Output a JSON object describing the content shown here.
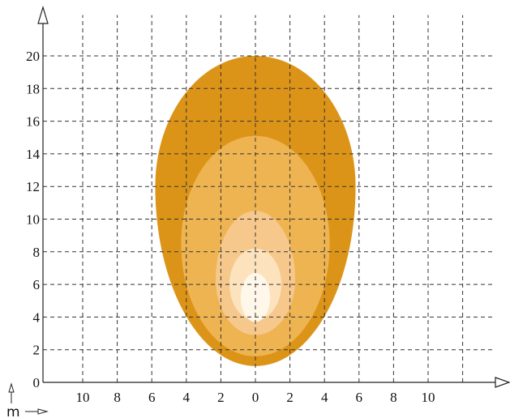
{
  "chart_data": {
    "type": "area",
    "title": "",
    "xlabel": "",
    "ylabel": "",
    "unit_label": "m",
    "x_tick_labels": [
      "10",
      "8",
      "6",
      "4",
      "2",
      "0",
      "2",
      "4",
      "6",
      "8",
      "10"
    ],
    "x_tick_values": [
      -10,
      -8,
      -6,
      -4,
      -2,
      0,
      2,
      4,
      6,
      8,
      10
    ],
    "y_ticks": [
      0,
      2,
      4,
      6,
      8,
      10,
      12,
      14,
      16,
      18,
      20
    ],
    "xlim": [
      -12,
      13
    ],
    "ylim": [
      0,
      22
    ],
    "grid": true,
    "contours": [
      {
        "color": "#DC9418",
        "x_range": [
          -5.8,
          5.8
        ],
        "y_range": [
          1.0,
          20.0
        ],
        "widest_at_y": 12
      },
      {
        "color": "#EFB452",
        "x_range": [
          -4.3,
          4.3
        ],
        "y_range": [
          1.6,
          15.1
        ],
        "widest_at_y": 8.5
      },
      {
        "color": "#F7C88C",
        "x_range": [
          -2.3,
          2.3
        ],
        "y_range": [
          2.9,
          10.5
        ],
        "widest_at_y": 6.3
      },
      {
        "color": "#FCE3BE",
        "x_range": [
          -1.5,
          1.5
        ],
        "y_range": [
          3.8,
          8.2
        ],
        "widest_at_y": 6.0
      },
      {
        "color": "#FFF8EA",
        "x_range": [
          -0.85,
          0.85
        ],
        "y_range": [
          3.7,
          6.7
        ],
        "widest_at_y": 5.2
      }
    ]
  }
}
